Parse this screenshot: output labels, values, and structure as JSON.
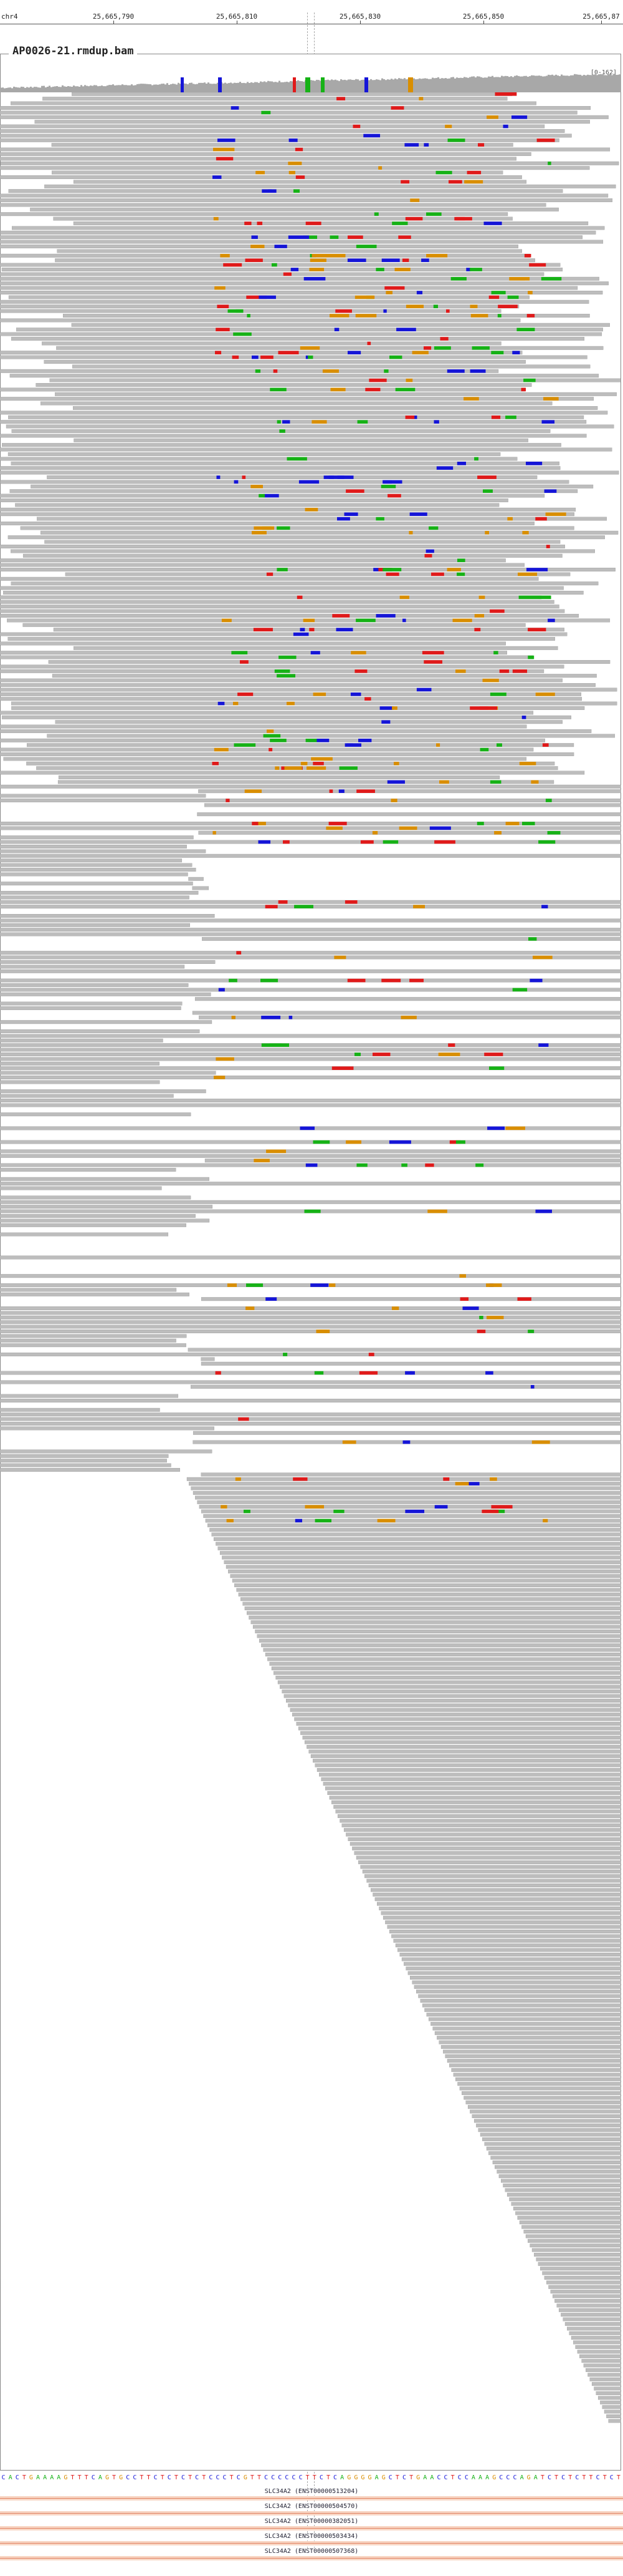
{
  "ruler": {
    "chrom": "chr4",
    "ticks": [
      "25,665,790",
      "25,665,810",
      "25,665,830",
      "25,665,850",
      "25,665,87"
    ]
  },
  "track": {
    "title": "AP0026-21.rmdup.bam",
    "coverage_range": "[0-162]"
  },
  "colors": {
    "read": "#bdbdbd",
    "read_outline": "#8c8c8c",
    "coverage": "#a8a8a8",
    "A": "#16b216",
    "C": "#1515d8",
    "G": "#d98e00",
    "T": "#e01a1a",
    "insertion": "#7a2cbf",
    "gene": "#f2b79e"
  },
  "sequence": "CACTGAAAAGTTTCAGTGCCTTCTCTCTCTCCCTCGTTCCCCCCTTCTCAGGGGAGCTCTGAACCTCCAAAGCCCAGATCTCTCTTCTCTCAGGGGAGCTCCCAGAC",
  "genes": [
    "SLC34A2 (ENST00000513204)",
    "SLC34A2 (ENST00000504570)",
    "SLC34A2 (ENST00000382051)",
    "SLC34A2 (ENST00000503434)",
    "SLC34A2 (ENST00000507368)"
  ]
}
